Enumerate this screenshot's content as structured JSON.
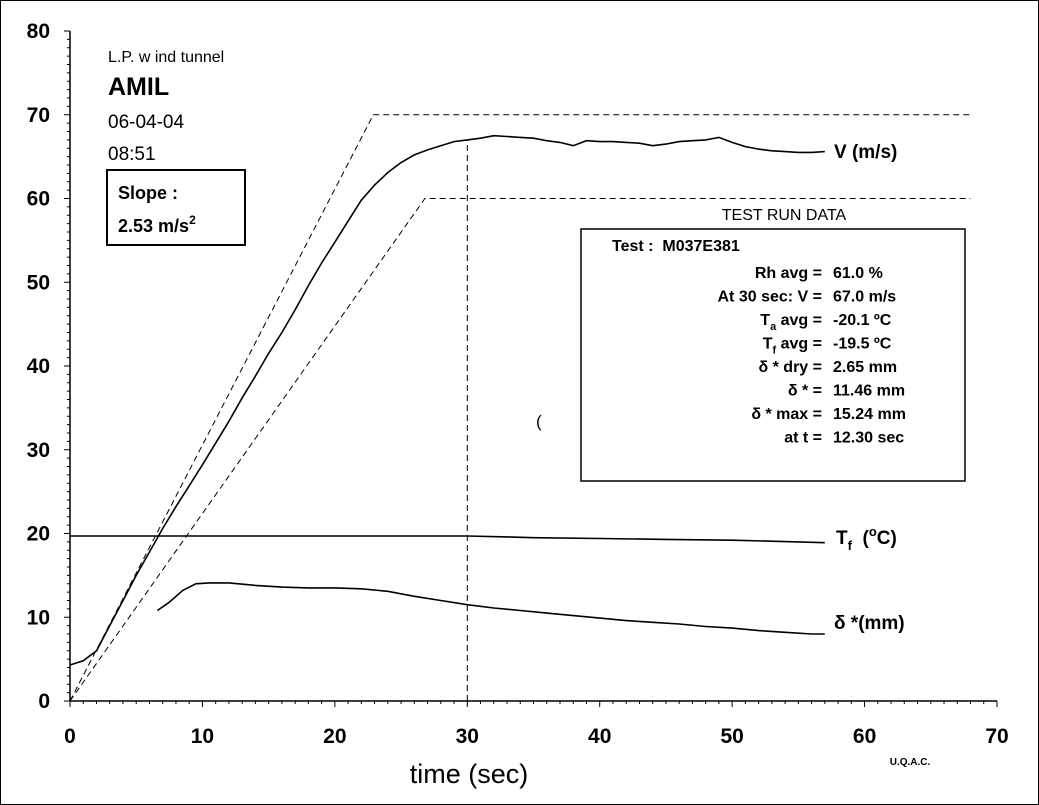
{
  "chart_data": {
    "type": "line",
    "xlabel": "time (sec)",
    "ylabel": "",
    "xlim": [
      0,
      70
    ],
    "ylim": [
      0,
      80
    ],
    "x_ticks": [
      "0",
      "10",
      "20",
      "30",
      "40",
      "50",
      "60",
      "70"
    ],
    "y_ticks": [
      "0",
      "10",
      "20",
      "30",
      "40",
      "50",
      "60",
      "70",
      "80"
    ],
    "grid": false,
    "header": {
      "facility": "L.P. w ind tunnel",
      "fluid": "AMIL",
      "date": "06-04-04",
      "time": "08:51"
    },
    "slope_box": {
      "label": "Slope :",
      "value": "2.53 m/s",
      "value_sup": "2"
    },
    "run_data": {
      "title": "TEST RUN DATA",
      "test_line": "Test :  M037E381",
      "rows": [
        {
          "label": "Rh avg =",
          "value": "61.0  %"
        },
        {
          "label": "At 30 sec: V =",
          "value": "67.0  m/s"
        },
        {
          "label": "T",
          "sub": "a",
          "label_rest": " avg =",
          "value": "-20.1 ºC"
        },
        {
          "label": "T",
          "sub": "f",
          "label_rest": "  avg =",
          "value": "-19.5 ºC"
        },
        {
          "label": "δ * dry =",
          "value": "2.65  mm"
        },
        {
          "label": "δ *        =",
          "value": "11.46  mm"
        },
        {
          "label": "δ * max =",
          "value": "15.24 mm"
        },
        {
          "label": "at t =",
          "value": "12.30 sec"
        }
      ]
    },
    "stray_mark": "(",
    "footer": "U.Q.A.C.",
    "series": [
      {
        "name": "V (m/s)",
        "style": "solid",
        "x": [
          0,
          1,
          2,
          3,
          4,
          5,
          6,
          7,
          8,
          9,
          10,
          11,
          12,
          13,
          14,
          15,
          16,
          17,
          18,
          19,
          20,
          21,
          22,
          23,
          24,
          25,
          26,
          27,
          28,
          29,
          30,
          31,
          32,
          33,
          34,
          35,
          36,
          37,
          38,
          39,
          40,
          41,
          42,
          43,
          44,
          45,
          46,
          47,
          48,
          49,
          50,
          51,
          52,
          53,
          54,
          55,
          56,
          57
        ],
        "y": [
          4.3,
          4.8,
          6.0,
          9.0,
          12.0,
          15.0,
          17.8,
          20.6,
          23.2,
          25.7,
          28.2,
          30.8,
          33.4,
          36.2,
          38.8,
          41.5,
          44.0,
          46.7,
          49.6,
          52.3,
          54.8,
          57.3,
          59.8,
          61.6,
          63.1,
          64.3,
          65.2,
          65.8,
          66.3,
          66.8,
          67.0,
          67.2,
          67.5,
          67.4,
          67.3,
          67.2,
          66.9,
          66.7,
          66.3,
          66.9,
          66.8,
          66.8,
          66.7,
          66.6,
          66.3,
          66.5,
          66.8,
          66.9,
          67.0,
          67.3,
          66.7,
          66.2,
          65.9,
          65.7,
          65.6,
          65.5,
          65.5,
          65.6
        ]
      },
      {
        "name": "T",
        "name_sub": "f",
        "name_rest": "  (",
        "name_sup": "o",
        "name_end": "C)",
        "style": "solid",
        "x": [
          0,
          5,
          10,
          15,
          20,
          25,
          30,
          33,
          35,
          40,
          45,
          50,
          55,
          57
        ],
        "y": [
          19.7,
          19.7,
          19.7,
          19.7,
          19.7,
          19.7,
          19.7,
          19.6,
          19.5,
          19.4,
          19.3,
          19.2,
          19.0,
          18.9
        ]
      },
      {
        "name": "δ *(mm)",
        "style": "solid",
        "x": [
          6.6,
          7.5,
          8.5,
          9.5,
          10.5,
          12,
          14,
          16,
          18,
          20,
          22,
          24,
          26,
          28,
          30,
          32,
          34,
          36,
          38,
          40,
          42,
          44,
          46,
          48,
          50,
          52,
          54,
          56,
          57
        ],
        "y": [
          10.8,
          11.8,
          13.2,
          14.0,
          14.1,
          14.1,
          13.8,
          13.6,
          13.5,
          13.5,
          13.4,
          13.1,
          12.5,
          12.0,
          11.5,
          11.1,
          10.8,
          10.5,
          10.2,
          9.9,
          9.6,
          9.4,
          9.2,
          8.9,
          8.7,
          8.4,
          8.2,
          8.0,
          8.0
        ]
      }
    ],
    "reference_lines": [
      {
        "style": "dashed",
        "x": [
          0,
          22.9,
          68
        ],
        "y": [
          0,
          70,
          70
        ]
      },
      {
        "style": "dashed",
        "x": [
          0,
          26.8,
          68
        ],
        "y": [
          0,
          60,
          60
        ]
      },
      {
        "style": "dashed",
        "x": [
          30,
          30
        ],
        "y": [
          0,
          67
        ]
      }
    ],
    "colors": {
      "line": "#000000",
      "background": "#ffffff"
    }
  }
}
